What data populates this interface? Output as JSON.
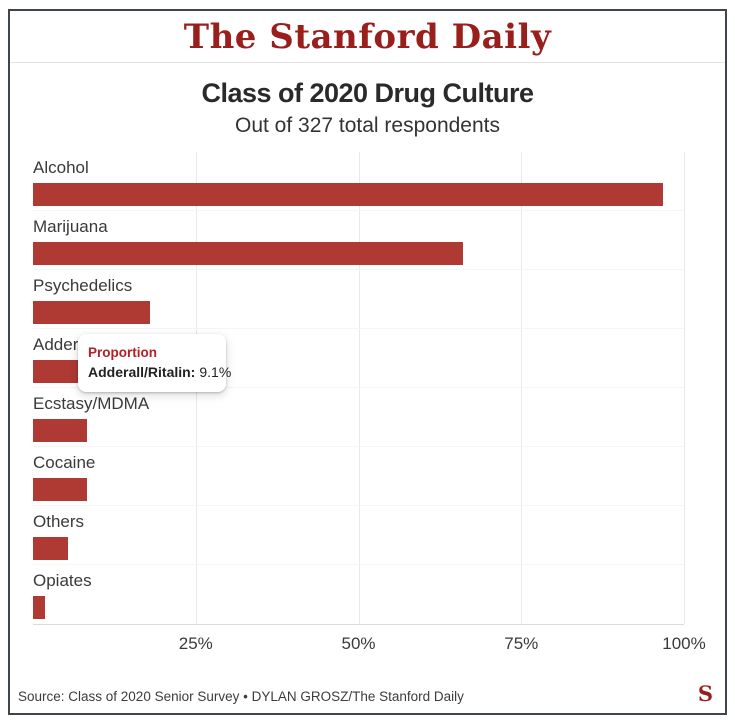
{
  "masthead": {
    "title": "The Stanford Daily",
    "brand_color": "#991f1c"
  },
  "chart_data": {
    "type": "bar",
    "orientation": "horizontal",
    "title": "Class of 2020 Drug Culture",
    "subtitle": "Out of 327 total respondents",
    "categories": [
      "Alcohol",
      "Marijuana",
      "Psychedelics",
      "Adderall/Ritalin",
      "Ecstasy/MDMA",
      "Cocaine",
      "Others",
      "Opiates"
    ],
    "values": [
      96.8,
      66.1,
      18.0,
      9.1,
      8.3,
      8.3,
      5.3,
      1.8
    ],
    "unit": "%",
    "xlim": [
      0,
      100
    ],
    "x_ticks": [
      "25%",
      "50%",
      "75%",
      "100%"
    ],
    "x_tick_values": [
      25,
      50,
      75,
      100
    ],
    "grid": "vertical",
    "bar_color": "#ae3a33",
    "legend": "none"
  },
  "tooltip": {
    "heading": "Proportion",
    "label": "Adderall/Ritalin:",
    "value": "9.1%"
  },
  "footer": {
    "source": "Source: Class of 2020 Senior Survey • DYLAN GROSZ/The Stanford Daily",
    "logo": "S"
  }
}
